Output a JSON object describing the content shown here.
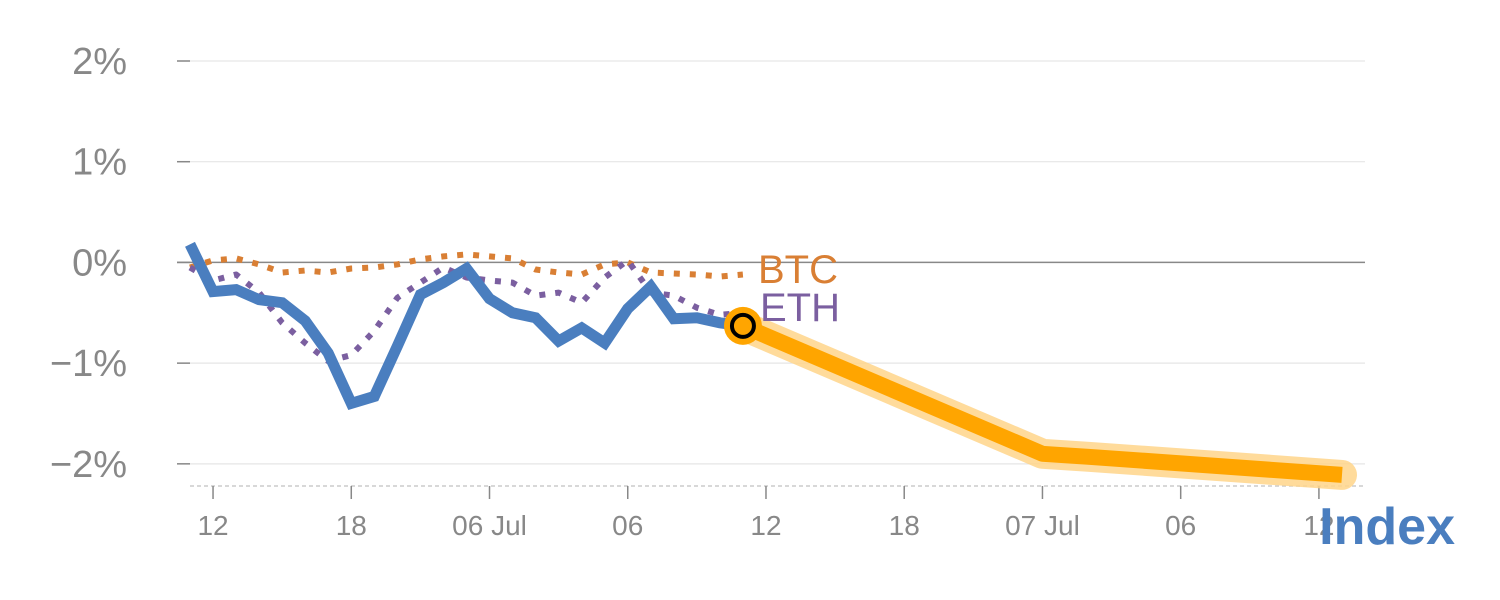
{
  "chart_data": {
    "type": "line",
    "y_tick_labels": [
      "2%",
      "1%",
      "0%",
      "−1%",
      "−2%"
    ],
    "y_ticks": [
      2,
      1,
      0,
      -1,
      -2
    ],
    "x_tick_labels": [
      "12",
      "18",
      "06 Jul",
      "06",
      "12",
      "18",
      "07 Jul",
      "06",
      "12"
    ],
    "x_ticks": [
      1,
      7,
      13,
      19,
      25,
      31,
      37,
      43,
      49
    ],
    "xlim": [
      0,
      51
    ],
    "ylim": [
      -2.22,
      2.0
    ],
    "series": [
      {
        "name": "Index",
        "color": "#4a7ebf",
        "style": "solid",
        "x": [
          0,
          1,
          2,
          3,
          4,
          5,
          6,
          7,
          8,
          9,
          10,
          11,
          12,
          13,
          14,
          15,
          16,
          17,
          18,
          19,
          20,
          21,
          22,
          23,
          24
        ],
        "y": [
          0.18,
          -0.29,
          -0.27,
          -0.37,
          -0.4,
          -0.58,
          -0.9,
          -1.4,
          -1.33,
          -0.83,
          -0.32,
          -0.2,
          -0.06,
          -0.36,
          -0.5,
          -0.55,
          -0.78,
          -0.65,
          -0.8,
          -0.46,
          -0.24,
          -0.56,
          -0.55,
          -0.6,
          -0.63
        ]
      },
      {
        "name": "BTC",
        "color": "#d97f34",
        "style": "dotted",
        "x": [
          0,
          1,
          2,
          3,
          4,
          5,
          6,
          7,
          8,
          9,
          10,
          11,
          12,
          13,
          14,
          15,
          16,
          17,
          18,
          19,
          20,
          21,
          22,
          23,
          24
        ],
        "y": [
          -0.05,
          0.02,
          0.04,
          -0.02,
          -0.1,
          -0.08,
          -0.1,
          -0.06,
          -0.05,
          -0.02,
          0.03,
          0.06,
          0.08,
          0.06,
          0.04,
          -0.07,
          -0.1,
          -0.12,
          -0.02,
          0.0,
          -0.1,
          -0.11,
          -0.12,
          -0.14,
          -0.12
        ]
      },
      {
        "name": "ETH",
        "color": "#7b5fa0",
        "style": "dotted",
        "x": [
          0,
          1,
          2,
          3,
          4,
          5,
          6,
          7,
          8,
          9,
          10,
          11,
          12,
          13,
          14,
          15,
          16,
          17,
          18,
          19,
          20,
          21,
          22,
          23,
          24
        ],
        "y": [
          -0.05,
          -0.18,
          -0.12,
          -0.3,
          -0.6,
          -0.8,
          -0.98,
          -0.92,
          -0.68,
          -0.35,
          -0.2,
          -0.05,
          -0.15,
          -0.18,
          -0.2,
          -0.33,
          -0.3,
          -0.4,
          -0.15,
          0.02,
          -0.3,
          -0.33,
          -0.45,
          -0.52,
          -0.5
        ]
      },
      {
        "name": "",
        "color": "#ffa500",
        "style": "forecast",
        "x": [
          24,
          37,
          39,
          50
        ],
        "y": [
          -0.63,
          -1.9,
          -1.93,
          -2.11
        ]
      }
    ],
    "labels": {
      "btc": "BTC",
      "eth": "ETH",
      "index": "Index"
    }
  }
}
